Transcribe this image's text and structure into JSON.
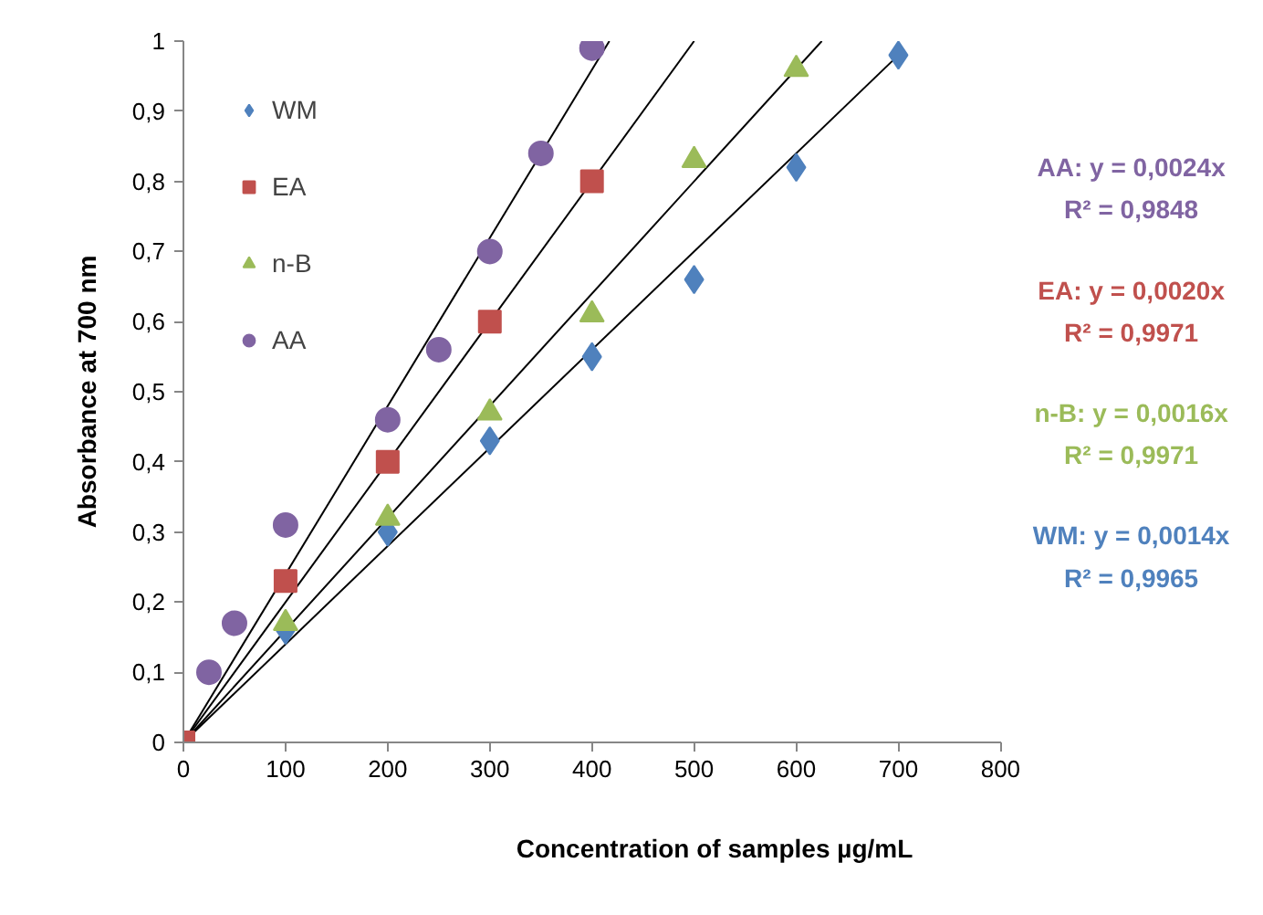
{
  "chart_data": {
    "type": "scatter",
    "xlabel": "Concentration of samples µg/mL",
    "ylabel": "Absorbance at 700 nm",
    "xlim": [
      0,
      800
    ],
    "xticks": [
      0,
      100,
      200,
      300,
      400,
      500,
      600,
      700,
      800
    ],
    "ylim": [
      0,
      1
    ],
    "yticks": [
      0,
      {
        "value": 0.1,
        "label": "0,1"
      },
      {
        "value": 0.2,
        "label": "0,2"
      },
      {
        "value": 0.3,
        "label": "0,3"
      },
      {
        "value": 0.4,
        "label": "0,4"
      },
      {
        "value": 0.5,
        "label": "0,5"
      },
      {
        "value": 0.6,
        "label": "0,6"
      },
      {
        "value": 0.7,
        "label": "0,7"
      },
      {
        "value": 0.8,
        "label": "0,8"
      },
      {
        "value": 0.9,
        "label": "0,9"
      },
      1
    ],
    "grid": false,
    "legend": "top left",
    "series": [
      {
        "name": "WM",
        "color": "#4f81bd",
        "marker": "diamond",
        "x": [
          100,
          200,
          300,
          400,
          500,
          600,
          700
        ],
        "values": [
          0.16,
          0.3,
          0.43,
          0.55,
          0.66,
          0.82,
          0.98
        ]
      },
      {
        "name": "EA",
        "color": "#c0504d",
        "marker": "square",
        "x": [
          0,
          100,
          200,
          300,
          400
        ],
        "values": [
          0,
          0.23,
          0.4,
          0.6,
          0.8
        ]
      },
      {
        "name": "n-B",
        "color": "#9bbb59",
        "marker": "triangle",
        "x": [
          100,
          200,
          300,
          400,
          500,
          600
        ],
        "values": [
          0.17,
          0.32,
          0.47,
          0.61,
          0.83,
          0.96
        ]
      },
      {
        "name": "AA",
        "color": "#8064a2",
        "marker": "circle",
        "x": [
          25,
          50,
          100,
          200,
          250,
          300,
          350,
          400
        ],
        "values": [
          0.1,
          0.17,
          0.31,
          0.46,
          0.56,
          0.7,
          0.84,
          0.99
        ]
      },
      {
        "type": "line",
        "color": "#000000",
        "x": [
          0,
          417
        ],
        "values": [
          0,
          1
        ]
      },
      {
        "type": "line",
        "color": "#000000",
        "x": [
          0,
          500
        ],
        "values": [
          0,
          1
        ]
      },
      {
        "type": "line",
        "color": "#000000",
        "x": [
          0,
          625
        ],
        "values": [
          0,
          1
        ]
      },
      {
        "type": "line",
        "color": "#000000",
        "x": [
          0,
          700
        ],
        "values": [
          0,
          0.98
        ]
      }
    ],
    "annotations": [
      "AA: y = 0,0024x",
      "R² = 0,9848",
      "EA: y = 0,0020x",
      "R² = 0,9971",
      "n-B: y = 0,0016x",
      "R² = 0,9971",
      "WM: y = 0,0014x",
      "R² = 0,9965"
    ]
  }
}
